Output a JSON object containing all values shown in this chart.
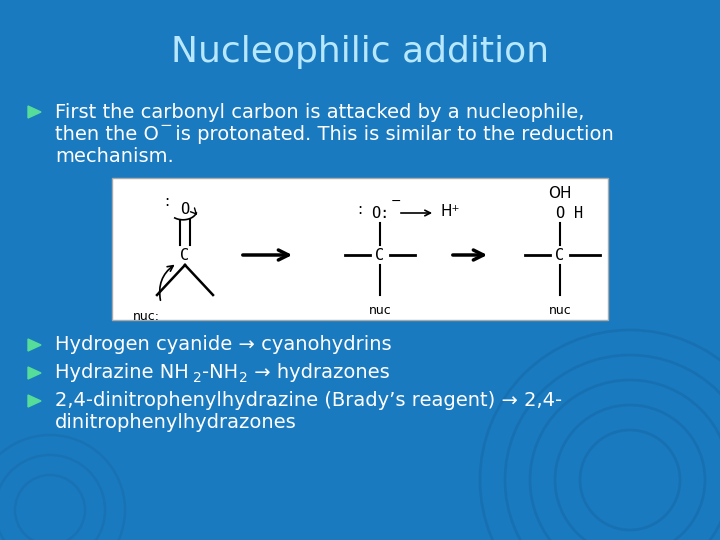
{
  "title": "Nucleophilic addition",
  "bg_color": "#1a7abf",
  "title_color": "#b8e8ff",
  "text_color": "#ffffff",
  "bullet_color": "#55dd99",
  "title_fontsize": 26,
  "body_fontsize": 14,
  "bullet1_line1": "First the carbonyl carbon is attacked by a nucleophile,",
  "bullet1_line2a": "then the O",
  "bullet1_line2b": " is protonated. This is similar to the reduction",
  "bullet1_line3": "mechanism.",
  "bullet2": "Hydrogen cyanide → cyanohydrins",
  "bullet4_line1": "2,4-dinitrophenylhydrazine (Brady’s reagent) → 2,4-",
  "bullet4_line2": "dinitrophenylhydrazones",
  "swirl_color": "#1565a0"
}
